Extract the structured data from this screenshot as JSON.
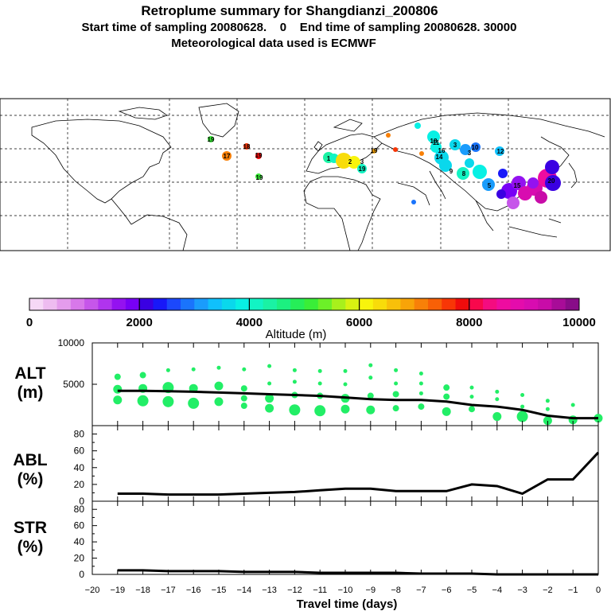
{
  "header": {
    "title": "Retroplume summary for Shangdianzi_200806",
    "subtitle": "Start time of sampling 20080628.    0    End time of sampling 20080628. 30000",
    "met_line": "Meteorological data used is ECMWF"
  },
  "colorbar": {
    "label": "Altitude (m)",
    "tick_labels": [
      "0",
      "2000",
      "4000",
      "6000",
      "8000",
      "10000"
    ],
    "colors": [
      "#f6d8f6",
      "#eebcf0",
      "#e49cec",
      "#d878ea",
      "#c656ea",
      "#b034ee",
      "#9412f0",
      "#7800f6",
      "#3a00e2",
      "#1818f8",
      "#1c48fc",
      "#1a74fc",
      "#1a9cfc",
      "#10c0fc",
      "#0ad8ec",
      "#08f0e4",
      "#12f4c4",
      "#1af2a4",
      "#1cf080",
      "#26ee58",
      "#3aee38",
      "#6cf028",
      "#a8f01c",
      "#d8f212",
      "#f8f40c",
      "#f8dc0a",
      "#f8c00a",
      "#f8a408",
      "#f88008",
      "#f86006",
      "#f83606",
      "#f00c0c",
      "#f8084c",
      "#f40c80",
      "#ee0ca0",
      "#e40cac",
      "#d80cb0",
      "#c80ca8",
      "#a80c98",
      "#880c88"
    ]
  },
  "map": {
    "cluster_labels": [
      "19",
      "17",
      "18",
      "19",
      "19",
      "1",
      "2",
      "3",
      "10",
      "12",
      "11",
      "15",
      "3",
      "19",
      "19",
      "18",
      "16",
      "14",
      "9",
      "3",
      "8",
      "5",
      "20"
    ]
  },
  "chart_data": [
    {
      "type": "line",
      "name": "ALT",
      "ylabel": "ALT\n(m)",
      "ylabel_lines": [
        "ALT",
        "(m)"
      ],
      "ylim": [
        0,
        10000
      ],
      "yticks": [
        0,
        5000,
        10000
      ],
      "ytick_labels": [
        "",
        "5000",
        "10000"
      ],
      "x": [
        -19,
        -18,
        -17,
        -16,
        -15,
        -14,
        -13,
        -12,
        -11,
        -10,
        -9,
        -8,
        -7,
        -6,
        -5,
        -4,
        -3,
        -2,
        -1,
        0
      ],
      "values": [
        4200,
        4200,
        4150,
        4100,
        4000,
        3900,
        3800,
        3700,
        3600,
        3400,
        3200,
        3100,
        3100,
        2900,
        2500,
        2300,
        1900,
        1200,
        900,
        900
      ],
      "points": [
        {
          "x": -19,
          "y": 5900,
          "s": 2
        },
        {
          "x": -19,
          "y": 4400,
          "s": 3
        },
        {
          "x": -19,
          "y": 3100,
          "s": 3
        },
        {
          "x": -18,
          "y": 6100,
          "s": 2
        },
        {
          "x": -18,
          "y": 4500,
          "s": 3
        },
        {
          "x": -18,
          "y": 3000,
          "s": 4
        },
        {
          "x": -17,
          "y": 6700,
          "s": 1
        },
        {
          "x": -17,
          "y": 4600,
          "s": 4
        },
        {
          "x": -17,
          "y": 2900,
          "s": 4
        },
        {
          "x": -16,
          "y": 6800,
          "s": 1
        },
        {
          "x": -16,
          "y": 4500,
          "s": 3
        },
        {
          "x": -16,
          "y": 2700,
          "s": 4
        },
        {
          "x": -15,
          "y": 7000,
          "s": 1
        },
        {
          "x": -15,
          "y": 4800,
          "s": 3
        },
        {
          "x": -15,
          "y": 2900,
          "s": 3
        },
        {
          "x": -14,
          "y": 6800,
          "s": 1
        },
        {
          "x": -14,
          "y": 4500,
          "s": 2
        },
        {
          "x": -14,
          "y": 3300,
          "s": 2
        },
        {
          "x": -14,
          "y": 2400,
          "s": 2
        },
        {
          "x": -13,
          "y": 7200,
          "s": 1
        },
        {
          "x": -13,
          "y": 5100,
          "s": 1
        },
        {
          "x": -13,
          "y": 3300,
          "s": 3
        },
        {
          "x": -13,
          "y": 2100,
          "s": 3
        },
        {
          "x": -12,
          "y": 6700,
          "s": 1
        },
        {
          "x": -12,
          "y": 5300,
          "s": 1
        },
        {
          "x": -12,
          "y": 3700,
          "s": 2
        },
        {
          "x": -12,
          "y": 1900,
          "s": 4
        },
        {
          "x": -11,
          "y": 6600,
          "s": 1
        },
        {
          "x": -11,
          "y": 5100,
          "s": 1
        },
        {
          "x": -11,
          "y": 3600,
          "s": 2
        },
        {
          "x": -11,
          "y": 1800,
          "s": 4
        },
        {
          "x": -10,
          "y": 6600,
          "s": 1
        },
        {
          "x": -10,
          "y": 5000,
          "s": 1
        },
        {
          "x": -10,
          "y": 3300,
          "s": 3
        },
        {
          "x": -10,
          "y": 2000,
          "s": 3
        },
        {
          "x": -9,
          "y": 7300,
          "s": 1
        },
        {
          "x": -9,
          "y": 5800,
          "s": 1
        },
        {
          "x": -9,
          "y": 3600,
          "s": 2
        },
        {
          "x": -9,
          "y": 1900,
          "s": 3
        },
        {
          "x": -8,
          "y": 6700,
          "s": 1
        },
        {
          "x": -8,
          "y": 5100,
          "s": 1
        },
        {
          "x": -8,
          "y": 3800,
          "s": 2
        },
        {
          "x": -8,
          "y": 2100,
          "s": 2
        },
        {
          "x": -7,
          "y": 6300,
          "s": 1
        },
        {
          "x": -7,
          "y": 5100,
          "s": 1
        },
        {
          "x": -7,
          "y": 3900,
          "s": 1
        },
        {
          "x": -7,
          "y": 2300,
          "s": 2
        },
        {
          "x": -6,
          "y": 4600,
          "s": 2
        },
        {
          "x": -6,
          "y": 3500,
          "s": 2
        },
        {
          "x": -6,
          "y": 1700,
          "s": 3
        },
        {
          "x": -5,
          "y": 4600,
          "s": 1
        },
        {
          "x": -5,
          "y": 3500,
          "s": 1
        },
        {
          "x": -5,
          "y": 2000,
          "s": 2
        },
        {
          "x": -4,
          "y": 4100,
          "s": 1
        },
        {
          "x": -4,
          "y": 3200,
          "s": 1
        },
        {
          "x": -4,
          "y": 1100,
          "s": 3
        },
        {
          "x": -3,
          "y": 3700,
          "s": 1
        },
        {
          "x": -3,
          "y": 2300,
          "s": 1
        },
        {
          "x": -3,
          "y": 1100,
          "s": 4
        },
        {
          "x": -2,
          "y": 3000,
          "s": 1
        },
        {
          "x": -2,
          "y": 2000,
          "s": 1
        },
        {
          "x": -2,
          "y": 600,
          "s": 3
        },
        {
          "x": -1,
          "y": 2500,
          "s": 1
        },
        {
          "x": -1,
          "y": 700,
          "s": 3
        },
        {
          "x": 0,
          "y": 900,
          "s": 3
        }
      ]
    },
    {
      "type": "line",
      "name": "ABL",
      "ylabel": "ABL\n(%)",
      "ylabel_lines": [
        "ABL",
        "(%)"
      ],
      "ylim": [
        0,
        90
      ],
      "yticks": [
        0,
        20,
        40,
        60,
        80
      ],
      "ytick_labels": [
        "0",
        "20",
        "40",
        "60",
        "80"
      ],
      "x": [
        -19,
        -18,
        -17,
        -16,
        -15,
        -14,
        -13,
        -12,
        -11,
        -10,
        -9,
        -8,
        -7,
        -6,
        -5,
        -4,
        -3,
        -2,
        -1,
        0
      ],
      "values": [
        9,
        9,
        8,
        8,
        8,
        9,
        10,
        11,
        13,
        15,
        15,
        12,
        12,
        12,
        20,
        18,
        9,
        26,
        26,
        58
      ]
    },
    {
      "type": "line",
      "name": "STR",
      "ylabel": "STR\n(%)",
      "ylabel_lines": [
        "STR",
        "(%)"
      ],
      "ylim": [
        0,
        90
      ],
      "yticks": [
        0,
        20,
        40,
        60,
        80
      ],
      "ytick_labels": [
        "0",
        "20",
        "40",
        "60",
        "80"
      ],
      "x": [
        -19,
        -18,
        -17,
        -16,
        -15,
        -14,
        -13,
        -12,
        -11,
        -10,
        -9,
        -8,
        -7,
        -6,
        -5,
        -4,
        -3,
        -2,
        -1,
        0
      ],
      "values": [
        5,
        5,
        4,
        4,
        4,
        3,
        3,
        3,
        2,
        2,
        2,
        2,
        1,
        1,
        1,
        0,
        0,
        0,
        0,
        0
      ],
      "xlabel": "Travel time (days)",
      "xtick_labels": [
        "−20",
        "−19",
        "−18",
        "−17",
        "−16",
        "−15",
        "−14",
        "−13",
        "−12",
        "−11",
        "−10",
        "−9",
        "−8",
        "−7",
        "−6",
        "−5",
        "−4",
        "−3",
        "−2",
        "−1",
        "0"
      ],
      "xlim": [
        -20,
        0
      ]
    }
  ]
}
